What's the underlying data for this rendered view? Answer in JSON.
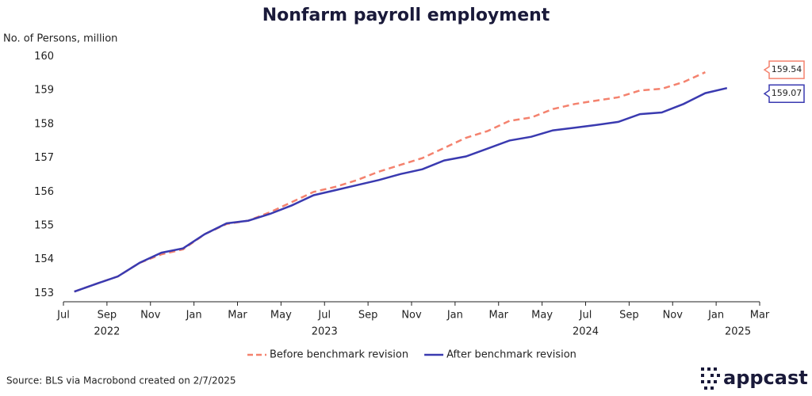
{
  "chart_data": {
    "type": "line",
    "title": "Nonfarm payroll employment",
    "ylabel": "No. of Persons, million",
    "x": [
      "2022-07",
      "2022-08",
      "2022-09",
      "2022-10",
      "2022-11",
      "2022-12",
      "2023-01",
      "2023-02",
      "2023-03",
      "2023-04",
      "2023-05",
      "2023-06",
      "2023-07",
      "2023-08",
      "2023-09",
      "2023-10",
      "2023-11",
      "2023-12",
      "2024-01",
      "2024-02",
      "2024-03",
      "2024-04",
      "2024-05",
      "2024-06",
      "2024-07",
      "2024-08",
      "2024-09",
      "2024-10",
      "2024-11",
      "2024-12",
      "2025-01"
    ],
    "series": [
      {
        "name": "Before benchmark revision",
        "color": "#f4826e",
        "dash": true,
        "end_label": "159.54",
        "values": [
          153.05,
          153.28,
          153.5,
          153.9,
          154.15,
          154.3,
          154.75,
          155.05,
          155.15,
          155.4,
          155.7,
          156.0,
          156.15,
          156.35,
          156.6,
          156.8,
          157.0,
          157.3,
          157.6,
          157.8,
          158.1,
          158.2,
          158.45,
          158.6,
          158.7,
          158.8,
          159.0,
          159.05,
          159.25,
          159.54,
          null
        ]
      },
      {
        "name": "After benchmark revision",
        "color": "#3a3ab0",
        "dash": false,
        "end_label": "159.07",
        "values": [
          153.05,
          153.28,
          153.5,
          153.9,
          154.2,
          154.33,
          154.75,
          155.07,
          155.15,
          155.35,
          155.6,
          155.9,
          156.05,
          156.2,
          156.35,
          156.53,
          156.67,
          156.93,
          157.05,
          157.28,
          157.52,
          157.63,
          157.82,
          157.9,
          157.98,
          158.07,
          158.3,
          158.35,
          158.6,
          158.92,
          159.07
        ]
      }
    ],
    "xlim": [
      "2022-07",
      "2025-03"
    ],
    "xticks": [
      {
        "value": "2022-07",
        "label": "Jul"
      },
      {
        "value": "2022-09",
        "label": "Sep"
      },
      {
        "value": "2022-11",
        "label": "Nov"
      },
      {
        "value": "2023-01",
        "label": "Jan"
      },
      {
        "value": "2023-03",
        "label": "Mar"
      },
      {
        "value": "2023-05",
        "label": "May"
      },
      {
        "value": "2023-07",
        "label": "Jul"
      },
      {
        "value": "2023-09",
        "label": "Sep"
      },
      {
        "value": "2023-11",
        "label": "Nov"
      },
      {
        "value": "2024-01",
        "label": "Jan"
      },
      {
        "value": "2024-03",
        "label": "Mar"
      },
      {
        "value": "2024-05",
        "label": "May"
      },
      {
        "value": "2024-07",
        "label": "Jul"
      },
      {
        "value": "2024-09",
        "label": "Sep"
      },
      {
        "value": "2024-11",
        "label": "Nov"
      },
      {
        "value": "2025-01",
        "label": "Jan"
      },
      {
        "value": "2025-03",
        "label": "Mar"
      }
    ],
    "year_labels": [
      {
        "value": "2022-09",
        "label": "2022"
      },
      {
        "value": "2023-07",
        "label": "2023"
      },
      {
        "value": "2024-07",
        "label": "2024"
      },
      {
        "value": "2025-02",
        "label": "2025"
      }
    ],
    "ylim": [
      152.75,
      160.2
    ],
    "yticks": [
      153,
      154,
      155,
      156,
      157,
      158,
      159,
      160
    ],
    "source": "Source: BLS via Macrobond created on 2/7/2025",
    "logo": "appcast"
  }
}
